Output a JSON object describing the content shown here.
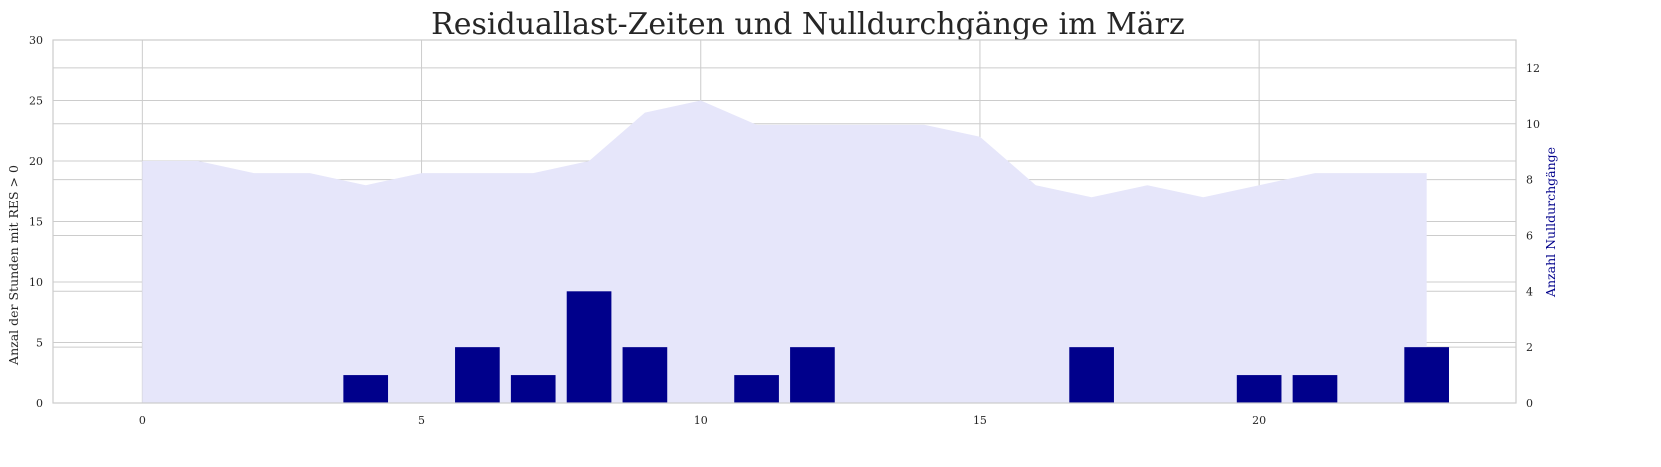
{
  "chart_data": {
    "type": "area+bar",
    "title": "Residuallast-Zeiten und Nulldurchgänge im März",
    "xlabel": "",
    "ylabel_left": "Anzal der Stunden mit RES > 0",
    "ylabel_right": "Anzahl Nulldurchgänge",
    "xlim": [
      -1.6,
      24.6
    ],
    "ylim_left": [
      0,
      30
    ],
    "ylim_right": [
      0,
      13
    ],
    "x_ticks": [
      0,
      5,
      10,
      15,
      20
    ],
    "y_ticks_left": [
      0,
      5,
      10,
      15,
      20,
      25,
      30
    ],
    "y_ticks_right": [
      0,
      2,
      4,
      6,
      8,
      10,
      12
    ],
    "grid": true,
    "area_series": {
      "axis": "left",
      "color": "#e6e6fa",
      "x": [
        0,
        1,
        2,
        3,
        4,
        5,
        6,
        7,
        8,
        9,
        10,
        11,
        12,
        13,
        14,
        15,
        16,
        17,
        18,
        19,
        20,
        21,
        22,
        23
      ],
      "values": [
        20,
        20,
        19,
        19,
        18,
        19,
        19,
        19,
        20,
        24,
        25,
        23,
        23,
        23,
        23,
        22,
        18,
        17,
        18,
        17,
        18,
        19,
        19,
        19
      ]
    },
    "bar_series": {
      "axis": "right",
      "color": "#00008b",
      "x": [
        0,
        1,
        2,
        3,
        4,
        5,
        6,
        7,
        8,
        9,
        10,
        11,
        12,
        13,
        14,
        15,
        16,
        17,
        18,
        19,
        20,
        21,
        22,
        23
      ],
      "values": [
        0,
        0,
        0,
        0,
        1,
        0,
        2,
        1,
        4,
        2,
        0,
        1,
        2,
        0,
        0,
        0,
        0,
        2,
        0,
        0,
        1,
        1,
        0,
        2
      ]
    }
  }
}
